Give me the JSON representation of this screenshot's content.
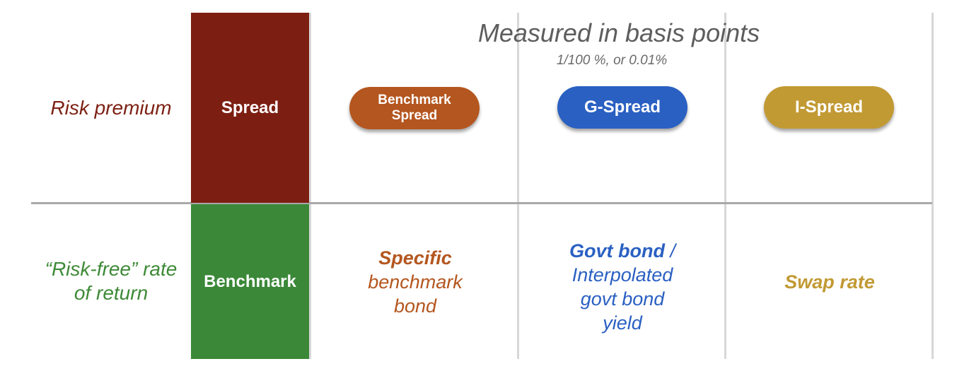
{
  "header": {
    "title": "Measured in basis points",
    "subtitle": "1/100 %, or 0.01%"
  },
  "rows": {
    "risk_premium": "Risk premium",
    "risk_free_line1": "“Risk-free” rate",
    "risk_free_line2": "of return"
  },
  "boxes": {
    "spread": "Spread",
    "benchmark": "Benchmark"
  },
  "pills": {
    "benchmark_spread_line1": "Benchmark",
    "benchmark_spread_line2": "Spread",
    "g_spread": "G-Spread",
    "i_spread": "I-Spread"
  },
  "cells": {
    "benchmark_bold": "Specific",
    "benchmark_line2": "benchmark",
    "benchmark_line3": "bond",
    "govt_bold": "Govt bond",
    "govt_slash": " /",
    "govt_line2": "Interpolated",
    "govt_line3": "govt bond",
    "govt_line4": "yield",
    "swap_rate": "Swap rate"
  },
  "colors": {
    "spread_box": "#7c1f12",
    "benchmark_box": "#3b8838",
    "benchmark_spread": "#b4561f",
    "g_spread": "#2a60c2",
    "i_spread": "#c29a34"
  }
}
